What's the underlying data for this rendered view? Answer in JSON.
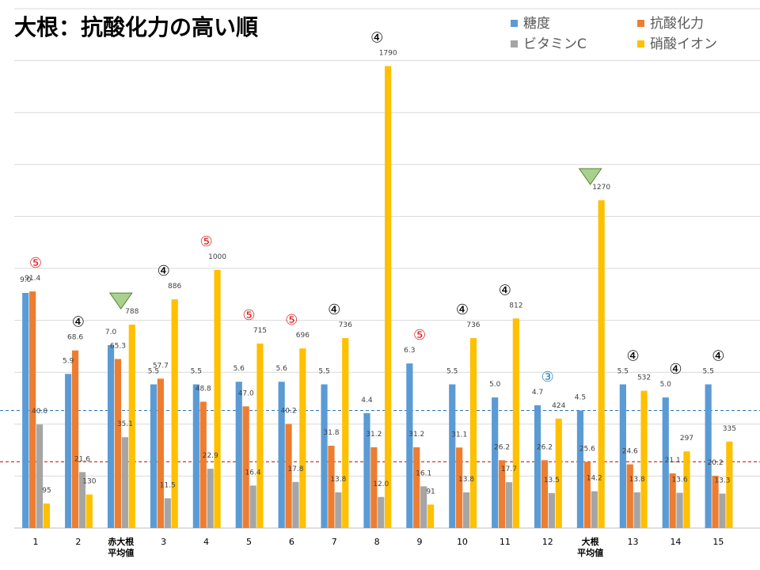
{
  "chart_data": {
    "type": "bar",
    "title": "大根：抗酸化力の高い順",
    "categories": [
      "1",
      "2",
      "赤大根\n平均値",
      "3",
      "4",
      "5",
      "6",
      "7",
      "8",
      "9",
      "10",
      "11",
      "12",
      "大根\n平均値",
      "13",
      "14",
      "15"
    ],
    "series": [
      {
        "name": "糖度",
        "color": "#5B9BD5",
        "values": [
          9.0,
          5.9,
          7.0,
          5.5,
          5.5,
          5.6,
          5.6,
          5.5,
          4.4,
          6.3,
          5.5,
          5.0,
          4.7,
          4.5,
          5.5,
          5.0,
          5.5
        ]
      },
      {
        "name": "抗酸化力",
        "color": "#ED7D31",
        "values": [
          91.4,
          68.6,
          65.3,
          57.7,
          48.8,
          47.0,
          40.2,
          31.8,
          31.2,
          31.2,
          31.1,
          26.2,
          26.2,
          25.6,
          24.6,
          21.1,
          20.2
        ]
      },
      {
        "name": "ビタミンC",
        "color": "#A5A5A5",
        "values": [
          40.0,
          21.6,
          35.1,
          11.5,
          22.9,
          16.4,
          17.8,
          13.8,
          12.0,
          16.1,
          13.8,
          17.7,
          13.5,
          14.2,
          13.8,
          13.6,
          13.3
        ]
      },
      {
        "name": "硝酸イオン",
        "color": "#FFC000",
        "values": [
          95,
          130,
          788,
          886,
          1000,
          715,
          696,
          736,
          1790,
          91,
          736,
          812,
          424,
          1270,
          532,
          297,
          335
        ]
      }
    ],
    "value_labels": {
      "糖度": [
        "9.0",
        "5.9",
        "7.0",
        "5.5",
        "5.5",
        "5.6",
        "5.6",
        "5.5",
        "4.4",
        "6.3",
        "5.5",
        "5.0",
        "4.7",
        "4.5",
        "5.5",
        "5.0",
        "5.5"
      ],
      "抗酸化力": [
        "91.4",
        "68.6",
        "65.3",
        "57.7",
        "48.8",
        "47.0",
        "40.2",
        "31.8",
        "31.2",
        "31.2",
        "31.1",
        "26.2",
        "26.2",
        "25.6",
        "24.6",
        "21.1",
        "20.2"
      ],
      "ビタミンC": [
        "40.0",
        "21.6",
        "35.1",
        "11.5",
        "22.9",
        "16.4",
        "17.8",
        "13.8",
        "12.0",
        "16.1",
        "13.8",
        "17.7",
        "13.5",
        "14.2",
        "13.8",
        "13.6",
        "13.3"
      ],
      "硝酸イオン": [
        "95",
        "130",
        "788",
        "886",
        "1000",
        "715",
        "696",
        "736",
        "1790",
        "91",
        "736",
        "812",
        "424",
        "1270",
        "532",
        "297",
        "335"
      ]
    },
    "rank_marks": [
      {
        "category": "1",
        "text": "⑤",
        "color": "#E02020"
      },
      {
        "category": "2",
        "text": "④",
        "color": "#000000"
      },
      {
        "category": "3",
        "text": "④",
        "color": "#000000"
      },
      {
        "category": "4",
        "text": "⑤",
        "color": "#E02020"
      },
      {
        "category": "5",
        "text": "⑤",
        "color": "#E02020"
      },
      {
        "category": "6",
        "text": "⑤",
        "color": "#E02020"
      },
      {
        "category": "7",
        "text": "④",
        "color": "#000000"
      },
      {
        "category": "8",
        "text": "④",
        "color": "#000000"
      },
      {
        "category": "9",
        "text": "⑤",
        "color": "#E02020"
      },
      {
        "category": "10",
        "text": "④",
        "color": "#000000"
      },
      {
        "category": "11",
        "text": "④",
        "color": "#000000"
      },
      {
        "category": "12",
        "text": "③",
        "color": "#2E86C1"
      },
      {
        "category": "13",
        "text": "④",
        "color": "#000000"
      },
      {
        "category": "14",
        "text": "④",
        "color": "#000000"
      },
      {
        "category": "15",
        "text": "④",
        "color": "#000000"
      }
    ],
    "average_markers": [
      "赤大根\n平均値",
      "大根\n平均値"
    ],
    "reference_lines": [
      {
        "color": "#2E75B6",
        "note": "大根平均 糖度"
      },
      {
        "color": "#C00000",
        "note": "大根平均 抗酸化力"
      }
    ],
    "legend_position": "top-right",
    "grid": true
  }
}
